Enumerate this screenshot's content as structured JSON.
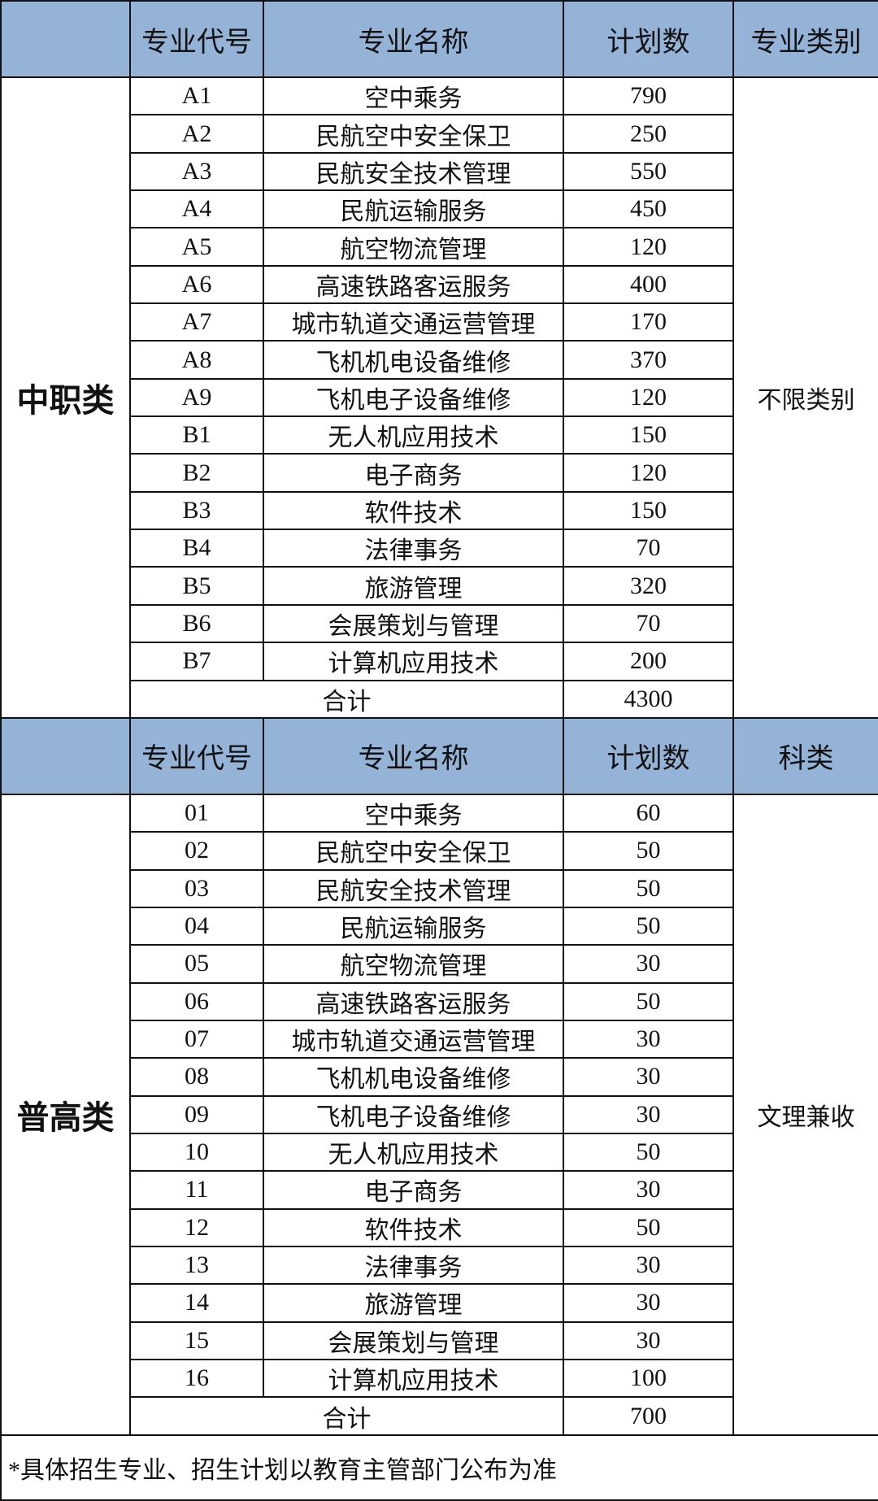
{
  "sections": [
    {
      "label": "中职类",
      "headers": [
        "专业代号",
        "专业名称",
        "计划数",
        "专业类别"
      ],
      "category": "不限类别",
      "rows": [
        [
          "A1",
          "空中乘务",
          "790"
        ],
        [
          "A2",
          "民航空中安全保卫",
          "250"
        ],
        [
          "A3",
          "民航安全技术管理",
          "550"
        ],
        [
          "A4",
          "民航运输服务",
          "450"
        ],
        [
          "A5",
          "航空物流管理",
          "120"
        ],
        [
          "A6",
          "高速铁路客运服务",
          "400"
        ],
        [
          "A7",
          "城市轨道交通运营管理",
          "170"
        ],
        [
          "A8",
          "飞机机电设备维修",
          "370"
        ],
        [
          "A9",
          "飞机电子设备维修",
          "120"
        ],
        [
          "B1",
          "无人机应用技术",
          "150"
        ],
        [
          "B2",
          "电子商务",
          "120"
        ],
        [
          "B3",
          "软件技术",
          "150"
        ],
        [
          "B4",
          "法律事务",
          "70"
        ],
        [
          "B5",
          "旅游管理",
          "320"
        ],
        [
          "B6",
          "会展策划与管理",
          "70"
        ],
        [
          "B7",
          "计算机应用技术",
          "200"
        ]
      ],
      "total_label": "合计",
      "total": "4300"
    },
    {
      "label": "普高类",
      "headers": [
        "专业代号",
        "专业名称",
        "计划数",
        "科类"
      ],
      "category": "文理兼收",
      "rows": [
        [
          "01",
          "空中乘务",
          "60"
        ],
        [
          "02",
          "民航空中安全保卫",
          "50"
        ],
        [
          "03",
          "民航安全技术管理",
          "50"
        ],
        [
          "04",
          "民航运输服务",
          "50"
        ],
        [
          "05",
          "航空物流管理",
          "30"
        ],
        [
          "06",
          "高速铁路客运服务",
          "50"
        ],
        [
          "07",
          "城市轨道交通运营管理",
          "30"
        ],
        [
          "08",
          "飞机机电设备维修",
          "30"
        ],
        [
          "09",
          "飞机电子设备维修",
          "30"
        ],
        [
          "10",
          "无人机应用技术",
          "50"
        ],
        [
          "11",
          "电子商务",
          "30"
        ],
        [
          "12",
          "软件技术",
          "50"
        ],
        [
          "13",
          "法律事务",
          "30"
        ],
        [
          "14",
          "旅游管理",
          "30"
        ],
        [
          "15",
          "会展策划与管理",
          "30"
        ],
        [
          "16",
          "计算机应用技术",
          "100"
        ]
      ],
      "total_label": "合计",
      "total": "700"
    }
  ],
  "footnote": "*具体招生专业、招生计划以教育主管部门公布为准",
  "colors": {
    "header_bg": "#95b3d7"
  }
}
